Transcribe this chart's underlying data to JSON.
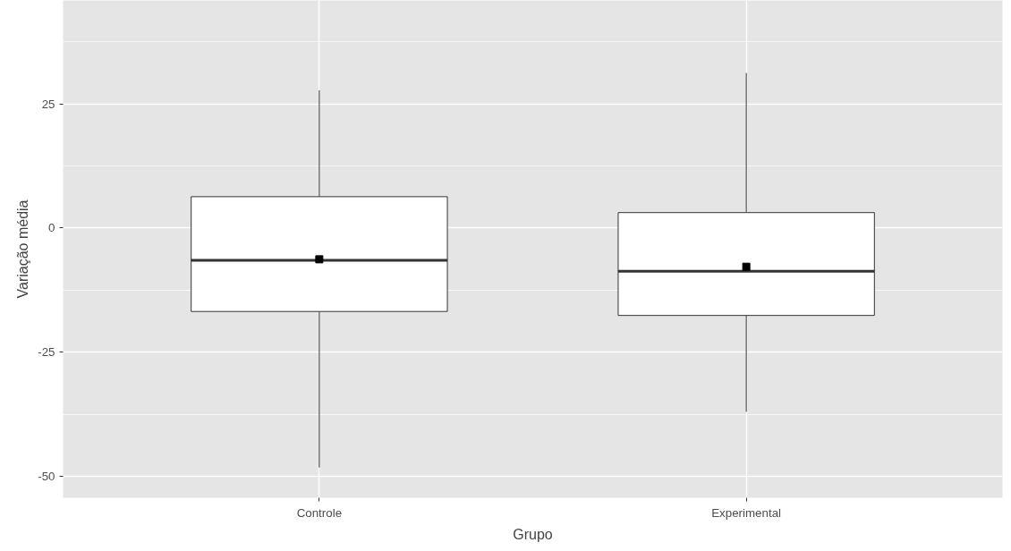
{
  "chart_data": {
    "type": "box",
    "xlabel": "Grupo",
    "ylabel": "Variação média",
    "categories": [
      "Controle",
      "Experimental"
    ],
    "boxes": [
      {
        "low": -48.2,
        "q1": -16.8,
        "median": -6.5,
        "q3": 6.3,
        "high": 27.7,
        "mean": -6.3
      },
      {
        "low": -37.0,
        "q1": -17.6,
        "median": -8.7,
        "q3": 3.1,
        "high": 31.2,
        "mean": -7.8
      }
    ],
    "ylim": [
      -54.3,
      45.8
    ],
    "yticks": [
      {
        "value": -50,
        "label": "-50"
      },
      {
        "value": -37.5,
        "label": null
      },
      {
        "value": -25,
        "label": "-25"
      },
      {
        "value": -12.5,
        "label": null
      },
      0,
      {
        "value": 12.5,
        "label": null
      },
      25,
      {
        "value": 37.5,
        "label": null
      }
    ],
    "grid": true,
    "marker": "square"
  }
}
